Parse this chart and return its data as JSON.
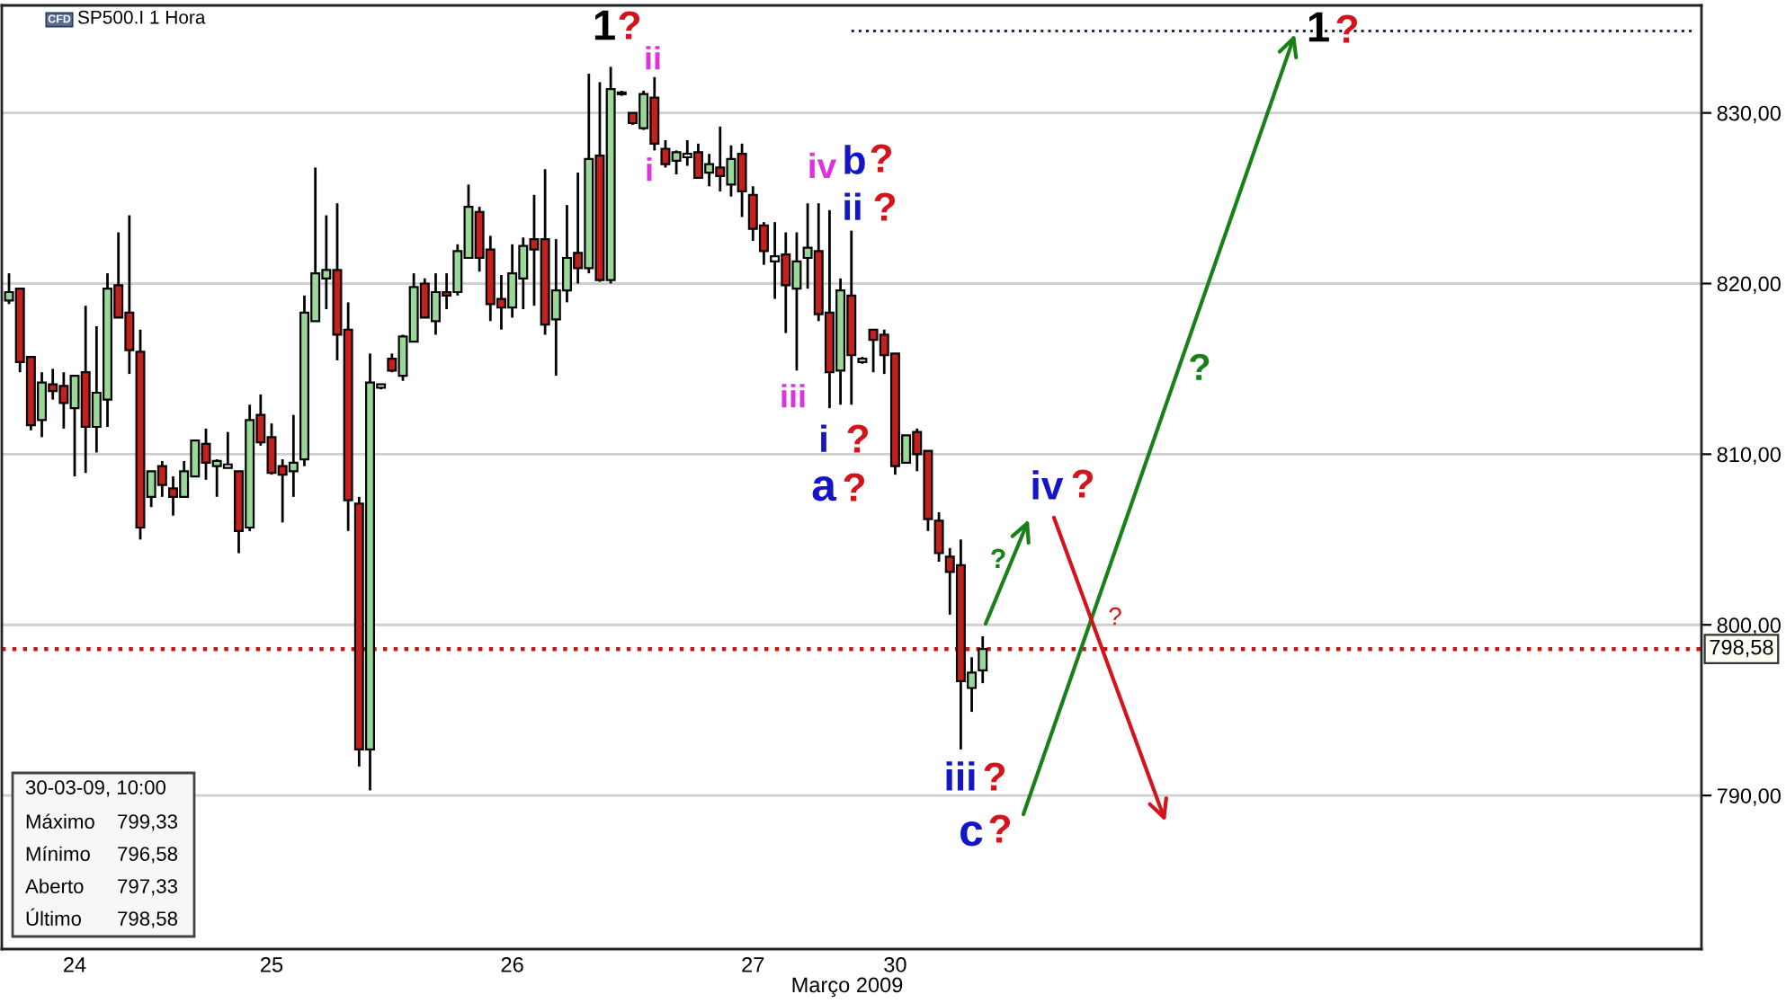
{
  "chart_data": {
    "type": "candlestick",
    "title": "SP500.I 1 Hora",
    "xlabel": "Março 2009",
    "categories": [
      null,
      null,
      null,
      null,
      null,
      null,
      "24",
      null,
      null,
      null,
      null,
      null,
      null,
      null,
      null,
      null,
      null,
      null,
      null,
      null,
      null,
      null,
      null,
      null,
      "25",
      null,
      null,
      null,
      null,
      null,
      null,
      null,
      null,
      null,
      null,
      null,
      null,
      null,
      null,
      null,
      null,
      null,
      null,
      null,
      null,
      null,
      "26",
      null,
      null,
      null,
      null,
      null,
      null,
      null,
      null,
      null,
      null,
      null,
      null,
      null,
      null,
      null,
      null,
      null,
      null,
      null,
      null,
      null,
      "27",
      null,
      null,
      null,
      null,
      null,
      null,
      null,
      null,
      null,
      null,
      null,
      null,
      "30",
      null,
      null,
      null,
      null,
      null,
      null,
      null,
      null,
      null,
      null,
      null,
      null,
      null,
      null,
      null,
      null,
      null,
      null,
      null,
      null,
      null,
      null,
      null,
      null,
      null,
      null,
      null,
      null,
      null,
      null,
      null,
      null,
      null,
      null,
      null,
      null,
      null,
      null,
      null,
      null,
      null,
      null,
      null,
      null,
      null,
      null,
      null,
      null,
      null,
      null,
      null,
      null,
      null,
      null,
      null,
      null,
      null,
      null,
      null,
      null,
      null,
      null,
      null,
      null,
      null,
      null,
      null,
      null,
      null,
      null,
      null,
      null,
      null
    ],
    "ohlc": [
      [
        819.0,
        820.6,
        818.8,
        819.5
      ],
      [
        819.7,
        819.7,
        814.8,
        815.4
      ],
      [
        815.7,
        815.7,
        811.4,
        811.7
      ],
      [
        812.0,
        814.8,
        811.0,
        814.2
      ],
      [
        814.1,
        815.0,
        813.2,
        813.7
      ],
      [
        814.0,
        814.8,
        811.5,
        813.0
      ],
      [
        812.7,
        814.6,
        808.7,
        814.6
      ],
      [
        814.8,
        818.7,
        808.9,
        811.6
      ],
      [
        811.6,
        817.5,
        810.1,
        813.6
      ],
      [
        813.2,
        820.6,
        811.6,
        819.7
      ],
      [
        819.9,
        823.0,
        818.0,
        818.0
      ],
      [
        818.3,
        824.0,
        814.7,
        816.1
      ],
      [
        816.0,
        817.3,
        805.0,
        805.7
      ],
      [
        807.5,
        809.0,
        806.9,
        809.0
      ],
      [
        809.3,
        809.6,
        807.5,
        808.2
      ],
      [
        808.0,
        808.7,
        806.4,
        807.5
      ],
      [
        807.5,
        809.6,
        807.5,
        809.0
      ],
      [
        808.7,
        810.8,
        808.7,
        810.8
      ],
      [
        810.6,
        811.5,
        808.5,
        809.5
      ],
      [
        809.3,
        809.7,
        807.5,
        809.6
      ],
      [
        809.2,
        811.3,
        809.2,
        809.4
      ],
      [
        809.0,
        809.0,
        804.2,
        805.5
      ],
      [
        805.7,
        812.9,
        805.5,
        812.0
      ],
      [
        812.3,
        813.5,
        810.5,
        810.7
      ],
      [
        811.0,
        811.8,
        808.8,
        808.9
      ],
      [
        809.3,
        809.7,
        806.0,
        808.8
      ],
      [
        809.0,
        812.3,
        807.5,
        809.5
      ],
      [
        809.7,
        819.3,
        809.3,
        818.3
      ],
      [
        817.8,
        826.8,
        817.8,
        820.6
      ],
      [
        820.3,
        824.0,
        818.5,
        820.8
      ],
      [
        820.8,
        824.7,
        815.5,
        817.0
      ],
      [
        817.3,
        818.9,
        805.5,
        807.3
      ],
      [
        807.1,
        807.5,
        791.7,
        792.7
      ],
      [
        792.7,
        815.9,
        790.3,
        814.2
      ],
      [
        813.9,
        814.1,
        813.8,
        814.1
      ],
      [
        815.6,
        815.9,
        814.8,
        814.9
      ],
      [
        814.6,
        817.0,
        814.3,
        816.9
      ],
      [
        816.6,
        820.6,
        816.6,
        819.8
      ],
      [
        820.0,
        820.3,
        818.0,
        818.0
      ],
      [
        817.8,
        820.6,
        817.0,
        819.5
      ],
      [
        819.5,
        820.6,
        818.5,
        819.3
      ],
      [
        819.5,
        822.3,
        819.3,
        821.9
      ],
      [
        821.5,
        825.8,
        821.5,
        824.5
      ],
      [
        824.2,
        824.5,
        820.7,
        821.5
      ],
      [
        822.0,
        822.8,
        817.8,
        818.8
      ],
      [
        819.1,
        820.5,
        817.3,
        818.6
      ],
      [
        818.6,
        822.3,
        818.0,
        820.6
      ],
      [
        820.3,
        822.7,
        818.5,
        822.2
      ],
      [
        822.6,
        825.2,
        818.7,
        822.0
      ],
      [
        822.6,
        826.7,
        817.0,
        817.6
      ],
      [
        817.9,
        822.6,
        814.6,
        819.6
      ],
      [
        819.6,
        824.6,
        818.9,
        821.5
      ],
      [
        821.8,
        826.5,
        820.0,
        820.9
      ],
      [
        820.9,
        832.3,
        820.6,
        827.3
      ],
      [
        827.5,
        831.8,
        820.1,
        820.2
      ],
      [
        820.2,
        832.7,
        820.0,
        831.4
      ],
      [
        831.1,
        831.3,
        831.0,
        831.2
      ],
      [
        830.0,
        830.0,
        829.3,
        829.4
      ],
      [
        829.1,
        831.3,
        829.0,
        831.1
      ],
      [
        830.9,
        832.1,
        827.8,
        828.2
      ],
      [
        827.9,
        828.4,
        826.8,
        827.0
      ],
      [
        827.2,
        827.8,
        826.4,
        827.7
      ],
      [
        827.4,
        828.4,
        826.9,
        827.6
      ],
      [
        827.7,
        828.2,
        826.2,
        826.2
      ],
      [
        826.5,
        827.6,
        825.7,
        827.0
      ],
      [
        826.8,
        829.2,
        825.4,
        826.3
      ],
      [
        825.8,
        828.1,
        825.1,
        827.3
      ],
      [
        827.6,
        828.2,
        823.9,
        825.4
      ],
      [
        825.2,
        825.7,
        822.5,
        823.2
      ],
      [
        823.4,
        823.6,
        821.1,
        821.9
      ],
      [
        821.3,
        823.6,
        819.1,
        821.6
      ],
      [
        821.7,
        823.0,
        817.1,
        819.9
      ],
      [
        819.7,
        823.0,
        814.9,
        821.3
      ],
      [
        821.5,
        824.7,
        819.7,
        822.1
      ],
      [
        821.9,
        824.7,
        817.8,
        818.2
      ],
      [
        818.3,
        824.3,
        812.7,
        814.8
      ],
      [
        814.9,
        820.3,
        812.9,
        819.6
      ],
      [
        819.3,
        823.1,
        812.9,
        815.8
      ],
      [
        815.4,
        815.7,
        815.3,
        815.6
      ],
      [
        817.3,
        817.3,
        814.8,
        816.7
      ],
      [
        817.0,
        817.3,
        814.7,
        815.8
      ],
      [
        815.9,
        815.9,
        808.8,
        809.3
      ],
      [
        809.5,
        811.1,
        809.5,
        811.1
      ],
      [
        811.3,
        811.5,
        809.0,
        810.0
      ],
      [
        810.2,
        810.2,
        805.5,
        806.2
      ],
      [
        806.1,
        806.6,
        803.7,
        804.2
      ],
      [
        804.0,
        804.5,
        800.6,
        803.1
      ],
      [
        803.5,
        805.0,
        792.7,
        796.7
      ],
      [
        796.3,
        798.1,
        794.9,
        797.2
      ],
      [
        797.33,
        799.33,
        796.58,
        798.58
      ],
      null,
      null,
      null,
      null,
      null,
      null,
      null,
      null,
      null,
      null,
      null,
      null,
      null,
      null,
      null,
      null,
      null,
      null,
      null,
      null,
      null,
      null,
      null,
      null,
      null,
      null,
      null,
      null,
      null,
      null,
      null,
      null,
      null,
      null,
      null,
      null,
      null,
      null,
      null,
      null,
      null,
      null,
      null,
      null,
      null,
      null,
      null,
      null,
      null,
      null,
      null,
      null,
      null,
      null,
      null,
      null,
      null,
      null,
      null,
      null,
      null,
      null,
      null,
      null,
      null
    ],
    "colors": [
      "#9ad89a",
      "#c4201e",
      "#c4201e",
      "#9ad89a",
      "#c4201e",
      "#c4201e",
      "#9ad89a",
      "#c4201e",
      "#9ad89a",
      "#9ad89a",
      "#c4201e",
      "#c4201e",
      "#c4201e",
      "#9ad89a",
      "#c4201e",
      "#c4201e",
      "#9ad89a",
      "#9ad89a",
      "#c4201e",
      "#9ad89a",
      "#ffffff",
      "#c4201e",
      "#9ad89a",
      "#c4201e",
      "#c4201e",
      "#c4201e",
      "#9ad89a",
      "#9ad89a",
      "#9ad89a",
      "#9ad89a",
      "#c4201e",
      "#c4201e",
      "#c4201e",
      "#9ad89a",
      "#ffffff",
      "#c4201e",
      "#9ad89a",
      "#9ad89a",
      "#c4201e",
      "#9ad89a",
      "#c4201e",
      "#9ad89a",
      "#9ad89a",
      "#c4201e",
      "#c4201e",
      "#c4201e",
      "#9ad89a",
      "#9ad89a",
      "#c4201e",
      "#c4201e",
      "#9ad89a",
      "#9ad89a",
      "#c4201e",
      "#9ad89a",
      "#c4201e",
      "#9ad89a",
      "#ffffff",
      "#c4201e",
      "#9ad89a",
      "#c4201e",
      "#c4201e",
      "#9ad89a",
      "#ffffff",
      "#c4201e",
      "#9ad89a",
      "#c4201e",
      "#9ad89a",
      "#c4201e",
      "#c4201e",
      "#c4201e",
      "#ffffff",
      "#c4201e",
      "#9ad89a",
      "#9ad89a",
      "#c4201e",
      "#c4201e",
      "#9ad89a",
      "#c4201e",
      "#ffffff",
      "#c4201e",
      "#c4201e",
      "#c4201e",
      "#9ad89a",
      "#c4201e",
      "#c4201e",
      "#c4201e",
      "#c4201e",
      "#c4201e",
      "#9ad89a",
      "#9ad89a",
      null,
      null,
      null,
      null,
      null,
      null,
      null,
      null,
      null,
      null,
      null,
      null,
      null,
      null,
      null,
      null,
      null,
      null,
      null,
      null,
      null,
      null,
      null,
      null,
      null,
      null,
      null,
      null,
      null,
      null,
      null,
      null,
      null,
      null,
      null,
      null,
      null,
      null,
      null,
      null,
      null,
      null,
      null,
      null,
      null,
      null,
      null,
      null,
      null,
      null,
      null,
      null,
      null,
      null,
      null,
      null,
      null,
      null,
      null,
      null,
      null,
      null,
      null,
      null,
      null
    ],
    "series": [
      {
        "type": "line",
        "color": "#23235a",
        "line_style": "dotted",
        "values": [
          null,
          null,
          null,
          null,
          null,
          null,
          null,
          null,
          null,
          null,
          null,
          null,
          null,
          null,
          null,
          null,
          null,
          null,
          null,
          null,
          null,
          null,
          null,
          null,
          null,
          null,
          null,
          null,
          null,
          null,
          null,
          null,
          null,
          null,
          null,
          null,
          null,
          null,
          null,
          null,
          null,
          null,
          null,
          null,
          null,
          null,
          null,
          null,
          null,
          null,
          null,
          null,
          null,
          null,
          null,
          null,
          null,
          null,
          null,
          null,
          null,
          null,
          null,
          null,
          null,
          null,
          null,
          null,
          null,
          null,
          null,
          null,
          null,
          null,
          null,
          null,
          null,
          834.8,
          834.8,
          834.8,
          834.8,
          834.8,
          834.8,
          834.8,
          834.8,
          834.8,
          834.8,
          834.8,
          834.8,
          834.8,
          834.8,
          834.8,
          834.8,
          834.8,
          834.8,
          834.8,
          834.8,
          834.8,
          834.8,
          834.8,
          834.8,
          834.8,
          834.8,
          834.8,
          834.8,
          834.8,
          834.8,
          834.8,
          834.8,
          834.8,
          834.8,
          834.8,
          834.8,
          834.8,
          834.8,
          834.8,
          834.8,
          834.8,
          834.8,
          834.8,
          834.8,
          834.8,
          834.8,
          834.8,
          834.8,
          834.8,
          834.8,
          834.8,
          834.8,
          834.8,
          834.8,
          834.8,
          834.8,
          834.8,
          834.8,
          834.8,
          834.8,
          834.8,
          834.8,
          834.8,
          834.8,
          834.8,
          834.8,
          834.8,
          834.8,
          834.8,
          834.8,
          834.8,
          834.8,
          834.8,
          834.8,
          834.8,
          834.8,
          834.8,
          834.8
        ]
      }
    ],
    "ylim": [
      781,
      836.3
    ],
    "yticks": [
      {
        "value": 790,
        "label": "790,00"
      },
      {
        "value": 800,
        "label": "800,00"
      },
      {
        "value": 810,
        "label": "810,00"
      },
      {
        "value": 820,
        "label": "820,00"
      },
      {
        "value": 830,
        "label": "830,00"
      }
    ],
    "grid": "y",
    "ref_lines": [
      {
        "axis": "y",
        "value": 798.58,
        "label": "798,58",
        "color": "#c81414",
        "line_style": "dotted"
      }
    ],
    "annotations": [
      "CFD",
      "30-03-09, 10:00",
      "Máximo",
      "799,33",
      "Mínimo",
      "796,58",
      "Aberto",
      "797,33",
      "Último",
      "798,58",
      "1",
      "?",
      "ii",
      "i",
      "iv",
      "b",
      "?",
      "ii",
      "?",
      "iii",
      "i",
      "?",
      "a",
      "?",
      "iii",
      "?",
      "c",
      "?",
      "iv",
      "?",
      "1",
      "?",
      "?",
      "?",
      "?"
    ]
  }
}
